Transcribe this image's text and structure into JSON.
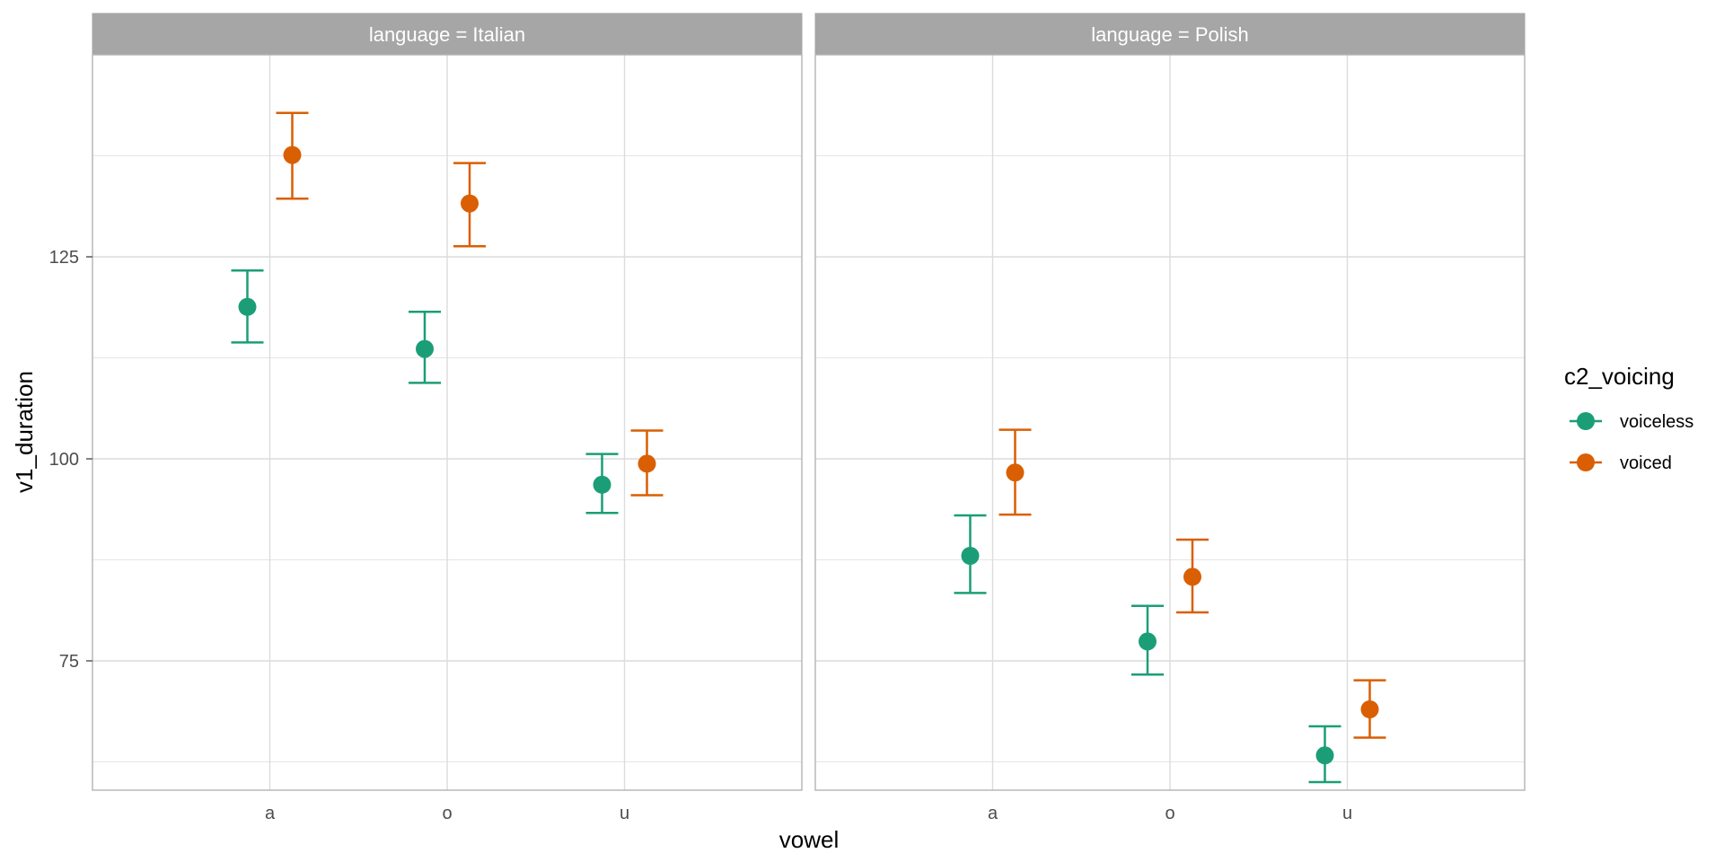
{
  "chart_data": {
    "type": "scatter",
    "subtype": "pointrange-errorbar-faceted",
    "facet_variable": "language",
    "facets": [
      {
        "label": "language = Italian",
        "language": "Italian",
        "series": [
          {
            "name": "voiceless",
            "points": [
              {
                "vowel": "a",
                "mean": 118.8,
                "lower": 114.4,
                "upper": 123.3
              },
              {
                "vowel": "o",
                "mean": 113.6,
                "lower": 109.4,
                "upper": 118.2
              },
              {
                "vowel": "u",
                "mean": 96.8,
                "lower": 93.3,
                "upper": 100.6
              }
            ]
          },
          {
            "name": "voiced",
            "points": [
              {
                "vowel": "a",
                "mean": 137.6,
                "lower": 132.2,
                "upper": 142.8
              },
              {
                "vowel": "o",
                "mean": 131.6,
                "lower": 126.3,
                "upper": 136.6
              },
              {
                "vowel": "u",
                "mean": 99.4,
                "lower": 95.5,
                "upper": 103.5
              }
            ]
          }
        ]
      },
      {
        "label": "language = Polish",
        "language": "Polish",
        "series": [
          {
            "name": "voiceless",
            "points": [
              {
                "vowel": "a",
                "mean": 88.0,
                "lower": 83.4,
                "upper": 93.0
              },
              {
                "vowel": "o",
                "mean": 77.4,
                "lower": 73.3,
                "upper": 81.8
              },
              {
                "vowel": "u",
                "mean": 63.3,
                "lower": 60.0,
                "upper": 66.9
              }
            ]
          },
          {
            "name": "voiced",
            "points": [
              {
                "vowel": "a",
                "mean": 98.3,
                "lower": 93.1,
                "upper": 103.6
              },
              {
                "vowel": "o",
                "mean": 85.4,
                "lower": 81.0,
                "upper": 90.0
              },
              {
                "vowel": "u",
                "mean": 69.0,
                "lower": 65.5,
                "upper": 72.6
              }
            ]
          }
        ]
      }
    ],
    "categories": [
      "a",
      "o",
      "u"
    ],
    "xlabel": "vowel",
    "ylabel": "v1_duration",
    "ylim": [
      59,
      150
    ],
    "yticks": [
      75,
      100,
      125
    ],
    "y_minor_ticks": [
      62.5,
      87.5,
      112.5,
      137.5
    ],
    "grid": true,
    "legend": {
      "title": "c2_voicing",
      "position": "right",
      "entries": [
        {
          "label": "voiceless",
          "color": "#1b9e77"
        },
        {
          "label": "voiced",
          "color": "#d95f02"
        }
      ]
    },
    "colors": {
      "voiceless": "#1b9e77",
      "voiced": "#d95f02",
      "strip": "#a6a6a6",
      "grid": "#dcdcdc",
      "panel_border": "#b3b3b3"
    }
  }
}
